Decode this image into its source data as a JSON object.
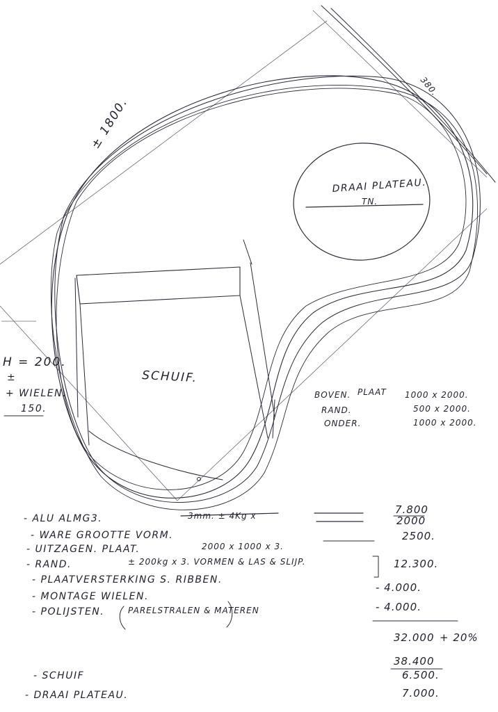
{
  "labels": {
    "dimension_top": "± 1800.",
    "dimension_corner": "380.",
    "turntable": "DRAAI PLATEAU.",
    "turntable_sub": "TN.",
    "drawer": "SCHUIF.",
    "height_1": "H = 200.",
    "height_2": "±",
    "height_3": "+ WIELEN.",
    "height_4": "150."
  },
  "plates": [
    {
      "name": "BOVEN.",
      "spec_label": "PLAAT",
      "size": "1000 x 2000."
    },
    {
      "name": "RAND.",
      "spec_label": "",
      "size": "500 x 2000."
    },
    {
      "name": "ONDER.",
      "spec_label": "",
      "size": "1000 x 2000."
    }
  ],
  "costs": [
    {
      "item": "- ALU ALMG3.",
      "detail": "3mm. ± 4Kg x",
      "amount": "7.800",
      "amount2": "2000"
    },
    {
      "item": "- WARE GROOTTE VORM.",
      "detail": "",
      "amount": "2500."
    },
    {
      "item": "- UITZAGEN. PLAAT.",
      "detail": "2000 x 1000 x 3.",
      "amount": ""
    },
    {
      "item": "- RAND.",
      "detail": "± 200kg x 3. VORMEN & LAS & SLIJP.",
      "amount": "12.300."
    },
    {
      "item": "- PLAATVERSTERKING S. RIBBEN.",
      "detail": "",
      "amount": "- 4.000."
    },
    {
      "item": "- MONTAGE WIELEN.",
      "detail": "",
      "amount": "- 4.000."
    },
    {
      "item": "- POLIJSTEN.",
      "detail": "PARELSTRALEN & MATEREN",
      "amount": ""
    }
  ],
  "totals": {
    "subtotal": "32.000",
    "markup": "+ 20%",
    "total": "38.400"
  },
  "extras": [
    {
      "item": "- SCHUIF",
      "amount": "6.500."
    },
    {
      "item": "- DRAAI PLATEAU.",
      "amount": "7.000."
    }
  ]
}
